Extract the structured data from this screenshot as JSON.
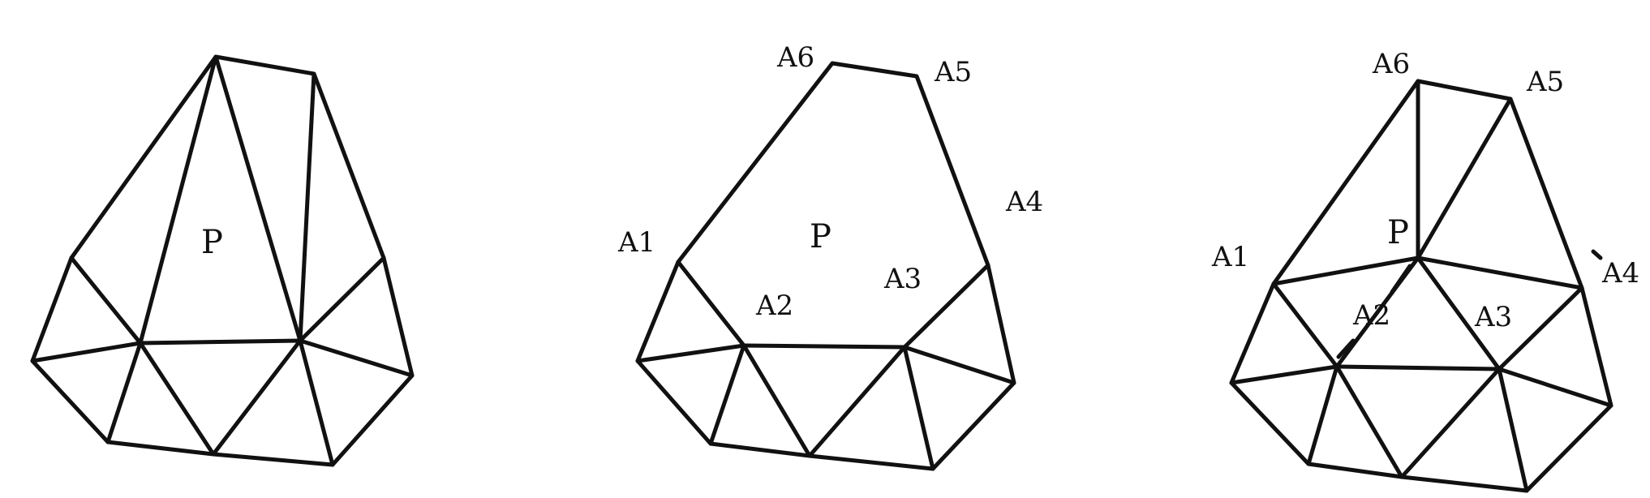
{
  "figure": {
    "panels": [
      {
        "id": "left",
        "center_label": "P"
      },
      {
        "id": "middle",
        "center_label": "P",
        "vertex_labels": [
          "A6",
          "A5",
          "A4",
          "A1",
          "A2",
          "A3"
        ]
      },
      {
        "id": "right",
        "center_label": "P",
        "vertex_labels": [
          "A6",
          "A5",
          "A1",
          "A4",
          "A2",
          "A3"
        ]
      }
    ],
    "line_color": "#111111",
    "background": "#ffffff"
  }
}
